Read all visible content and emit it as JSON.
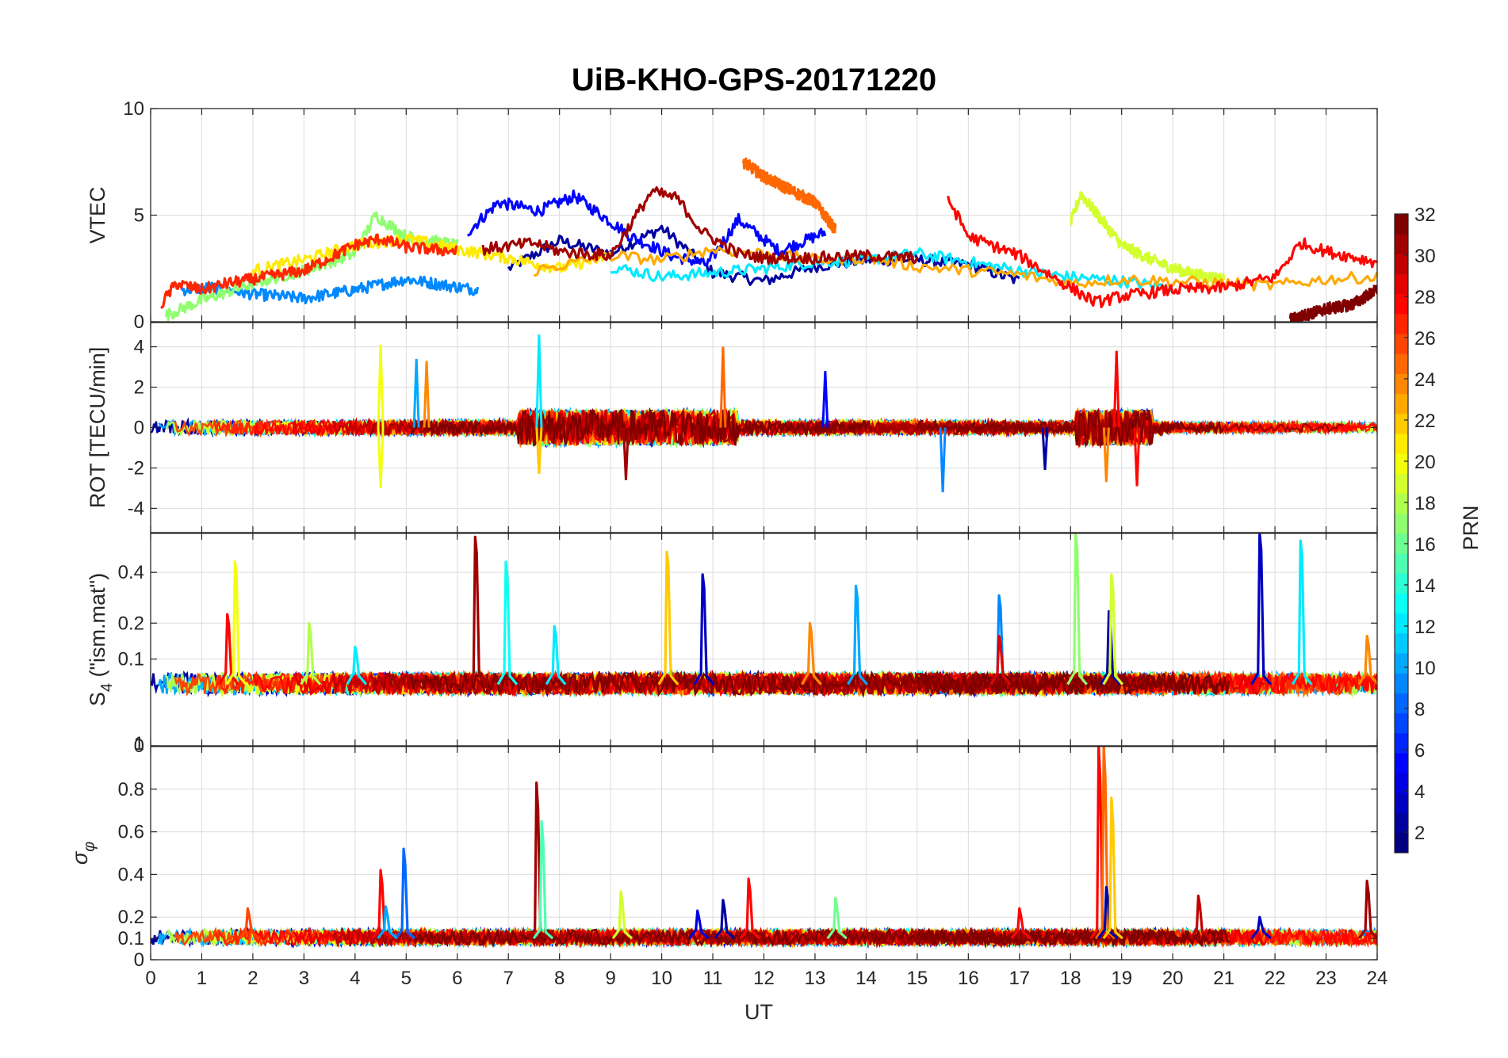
{
  "figure": {
    "title": "UiB-KHO-GPS-20171220",
    "xlabel": "UT"
  },
  "colorbar": {
    "label": "PRN",
    "ticks": [
      "2",
      "4",
      "6",
      "8",
      "10",
      "12",
      "14",
      "16",
      "18",
      "20",
      "22",
      "24",
      "26",
      "28",
      "30",
      "32"
    ],
    "colormap": "jet",
    "range": [
      1,
      32
    ]
  },
  "chart_data": [
    {
      "type": "line",
      "panel": "vtec",
      "ylabel": "VTEC",
      "xlim": [
        0,
        24
      ],
      "ylim": [
        0,
        10
      ],
      "yticks": [
        0,
        5,
        10
      ],
      "ytick_labels": [
        "0",
        "5",
        "10"
      ],
      "grid": true,
      "series": [
        {
          "prn": 2,
          "x": [
            7,
            8,
            9,
            10,
            11,
            12,
            13,
            14,
            15,
            16,
            17
          ],
          "y": [
            2.5,
            3.8,
            3.2,
            4.4,
            2.3,
            1.9,
            2.6,
            2.9,
            2.9,
            2.7,
            1.9
          ]
        },
        {
          "prn": 5,
          "x": [
            6.2,
            6.8,
            7.6,
            8.3,
            9.4,
            10.2,
            10.9,
            11.5,
            12.3,
            13.2
          ],
          "y": [
            4.2,
            5.6,
            5.2,
            5.9,
            4.0,
            3.1,
            2.7,
            4.8,
            3.3,
            4.2
          ]
        },
        {
          "prn": 9,
          "x": [
            0.6,
            1.2,
            2,
            3,
            4,
            5,
            5.8,
            6.4
          ],
          "y": [
            1.5,
            1.6,
            1.3,
            1.1,
            1.5,
            2.0,
            1.7,
            1.5
          ]
        },
        {
          "prn": 12,
          "x": [
            9,
            10,
            11,
            12,
            13,
            14,
            15,
            16,
            17,
            18,
            19,
            20
          ],
          "y": [
            2.6,
            2.1,
            2.3,
            2.5,
            2.8,
            2.9,
            3.2,
            2.8,
            2.4,
            2.1,
            1.9,
            1.6
          ]
        },
        {
          "prn": 17,
          "x": [
            0.3,
            1,
            2,
            3,
            4,
            4.4,
            5,
            6
          ],
          "y": [
            0.3,
            1.0,
            1.8,
            2.4,
            3.2,
            5.0,
            4.0,
            3.6
          ]
        },
        {
          "prn": 19,
          "x": [
            18,
            18.2,
            18.6,
            19,
            19.5,
            20,
            20.5,
            21
          ],
          "y": [
            4.6,
            6.0,
            4.8,
            3.6,
            3.0,
            2.5,
            2.2,
            2.0
          ]
        },
        {
          "prn": 21,
          "x": [
            2,
            3,
            4,
            5,
            6,
            7,
            8,
            9
          ],
          "y": [
            2.4,
            2.9,
            3.6,
            3.9,
            3.4,
            3.0,
            2.5,
            3.1
          ]
        },
        {
          "prn": 23,
          "x": [
            7.5,
            9,
            10,
            11,
            12,
            13,
            14,
            15,
            16,
            17,
            18,
            19,
            20,
            21,
            22,
            23,
            24
          ],
          "y": [
            2.4,
            3.1,
            2.9,
            3.4,
            3.2,
            2.9,
            3.0,
            2.6,
            2.4,
            2.2,
            1.8,
            2.0,
            1.9,
            1.8,
            1.7,
            2.0,
            2.1
          ]
        },
        {
          "prn": 25,
          "x": [
            11.6,
            12,
            12.5,
            13,
            13.4
          ],
          "y": [
            7.5,
            6.8,
            6.2,
            5.6,
            4.3
          ]
        },
        {
          "prn": 27,
          "x": [
            0.2,
            0.5,
            1,
            1.5,
            2,
            3,
            4,
            4.5,
            5,
            6
          ],
          "y": [
            0.8,
            1.8,
            1.5,
            1.8,
            2.0,
            2.4,
            3.6,
            3.9,
            3.5,
            3.3
          ]
        },
        {
          "prn": 28,
          "x": [
            15.6,
            16,
            17,
            18,
            18.5,
            19,
            20,
            21,
            22,
            22.5,
            23,
            24
          ],
          "y": [
            5.8,
            4.0,
            3.1,
            1.6,
            0.9,
            1.2,
            1.5,
            1.6,
            2.1,
            3.7,
            3.3,
            2.8
          ]
        },
        {
          "prn": 31,
          "x": [
            6.5,
            7.5,
            8,
            9,
            9.8,
            10.3,
            10.8,
            11.5,
            12,
            13,
            14,
            15
          ],
          "y": [
            3.4,
            3.7,
            3.3,
            3.1,
            6.1,
            5.8,
            4.2,
            3.2,
            3.0,
            3.0,
            3.1,
            3.0
          ]
        },
        {
          "prn": 32,
          "x": [
            22.3,
            23,
            23.5,
            24
          ],
          "y": [
            0.1,
            0.6,
            0.8,
            1.5
          ]
        }
      ]
    },
    {
      "type": "line",
      "panel": "rot",
      "ylabel": "ROT [TECU/min]",
      "xlim": [
        0,
        24
      ],
      "ylim": [
        -5.2,
        5.2
      ],
      "yticks": [
        -4,
        -2,
        0,
        2,
        4
      ],
      "ytick_labels": [
        "-4",
        "-2",
        "0",
        "2",
        "4"
      ],
      "grid": true,
      "spikes": [
        {
          "prn": 20,
          "x": 4.5,
          "y": 4.1
        },
        {
          "prn": 20,
          "x": 4.5,
          "y": -3.0
        },
        {
          "prn": 10,
          "x": 5.2,
          "y": 3.4
        },
        {
          "prn": 24,
          "x": 5.4,
          "y": 3.3
        },
        {
          "prn": 12,
          "x": 7.6,
          "y": 4.6
        },
        {
          "prn": 22,
          "x": 7.6,
          "y": -2.3
        },
        {
          "prn": 31,
          "x": 9.3,
          "y": -2.6
        },
        {
          "prn": 25,
          "x": 11.2,
          "y": 4.0
        },
        {
          "prn": 5,
          "x": 13.2,
          "y": 2.8
        },
        {
          "prn": 9,
          "x": 15.5,
          "y": -3.2
        },
        {
          "prn": 2,
          "x": 17.5,
          "y": -2.1
        },
        {
          "prn": 28,
          "x": 18.9,
          "y": 3.8
        },
        {
          "prn": 24,
          "x": 18.7,
          "y": -2.7
        },
        {
          "prn": 28,
          "x": 19.3,
          "y": -2.9
        }
      ]
    },
    {
      "type": "line",
      "panel": "s4",
      "ylabel": "S4 (\"ism.mat\")",
      "ylabel_main": "S",
      "ylabel_sub": "4",
      "ylabel_rest": " (\"ism.mat\")",
      "xlim": [
        0,
        24
      ],
      "ylim": [
        0,
        0.6
      ],
      "yticks": [
        0,
        0.1,
        0.2,
        0.4
      ],
      "ytick_labels": [
        "0",
        "0.1",
        "0.2",
        "0.4"
      ],
      "grid": true,
      "scale": "sqrt",
      "baseline": 0.05,
      "spikes": [
        {
          "prn": 28,
          "x": 1.5,
          "y": 0.23
        },
        {
          "prn": 20,
          "x": 1.65,
          "y": 0.45
        },
        {
          "prn": 18,
          "x": 3.1,
          "y": 0.2
        },
        {
          "prn": 12,
          "x": 4.0,
          "y": 0.13
        },
        {
          "prn": 31,
          "x": 6.35,
          "y": 0.58
        },
        {
          "prn": 13,
          "x": 6.95,
          "y": 0.45
        },
        {
          "prn": 12,
          "x": 7.9,
          "y": 0.19
        },
        {
          "prn": 22,
          "x": 10.1,
          "y": 0.5
        },
        {
          "prn": 3,
          "x": 10.8,
          "y": 0.39
        },
        {
          "prn": 24,
          "x": 12.9,
          "y": 0.2
        },
        {
          "prn": 10,
          "x": 13.8,
          "y": 0.34
        },
        {
          "prn": 9,
          "x": 16.6,
          "y": 0.3
        },
        {
          "prn": 29,
          "x": 16.6,
          "y": 0.16
        },
        {
          "prn": 17,
          "x": 18.1,
          "y": 0.6
        },
        {
          "prn": 2,
          "x": 18.75,
          "y": 0.24
        },
        {
          "prn": 19,
          "x": 18.8,
          "y": 0.39
        },
        {
          "prn": 3,
          "x": 21.7,
          "y": 0.6
        },
        {
          "prn": 12,
          "x": 22.5,
          "y": 0.56
        },
        {
          "prn": 24,
          "x": 23.8,
          "y": 0.16
        }
      ]
    },
    {
      "type": "line",
      "panel": "sigma_phi",
      "ylabel": "σφ",
      "ylabel_main": "σ",
      "ylabel_sub": "φ",
      "xlim": [
        0,
        24
      ],
      "ylim": [
        0,
        1
      ],
      "yticks": [
        0,
        0.1,
        0.2,
        0.4,
        0.6,
        0.8
      ],
      "ytick_labels": [
        "0",
        "0.1",
        "0.2",
        "0.4",
        "0.6",
        "0.8"
      ],
      "top_tick_label": "1",
      "grid": true,
      "baseline": 0.1,
      "spikes": [
        {
          "prn": 26,
          "x": 1.9,
          "y": 0.24
        },
        {
          "prn": 28,
          "x": 4.5,
          "y": 0.42
        },
        {
          "prn": 8,
          "x": 4.95,
          "y": 0.52
        },
        {
          "prn": 10,
          "x": 4.6,
          "y": 0.25
        },
        {
          "prn": 31,
          "x": 7.55,
          "y": 0.83
        },
        {
          "prn": 15,
          "x": 7.65,
          "y": 0.65
        },
        {
          "prn": 19,
          "x": 9.2,
          "y": 0.32
        },
        {
          "prn": 4,
          "x": 10.7,
          "y": 0.23
        },
        {
          "prn": 2,
          "x": 11.2,
          "y": 0.28
        },
        {
          "prn": 28,
          "x": 11.7,
          "y": 0.38
        },
        {
          "prn": 16,
          "x": 13.4,
          "y": 0.29
        },
        {
          "prn": 28,
          "x": 17.0,
          "y": 0.24
        },
        {
          "prn": 28,
          "x": 18.55,
          "y": 1.0
        },
        {
          "prn": 25,
          "x": 18.65,
          "y": 1.0
        },
        {
          "prn": 2,
          "x": 18.7,
          "y": 0.34
        },
        {
          "prn": 22,
          "x": 18.8,
          "y": 0.76
        },
        {
          "prn": 30,
          "x": 20.5,
          "y": 0.3
        },
        {
          "prn": 3,
          "x": 21.7,
          "y": 0.2
        },
        {
          "prn": 31,
          "x": 23.8,
          "y": 0.37
        }
      ]
    }
  ],
  "xticks": [
    0,
    1,
    2,
    3,
    4,
    5,
    6,
    7,
    8,
    9,
    10,
    11,
    12,
    13,
    14,
    15,
    16,
    17,
    18,
    19,
    20,
    21,
    22,
    23,
    24
  ]
}
